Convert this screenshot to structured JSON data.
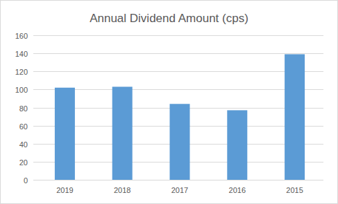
{
  "chart_data": {
    "type": "bar",
    "title": "Annual Dividend Amount (cps)",
    "categories": [
      "2019",
      "2018",
      "2017",
      "2016",
      "2015"
    ],
    "values": [
      102,
      103,
      84,
      77,
      139
    ],
    "color": "#5b9bd5",
    "ylim": [
      0,
      160
    ],
    "yticks": [
      0,
      20,
      40,
      60,
      80,
      100,
      120,
      140,
      160
    ],
    "grid": true
  }
}
